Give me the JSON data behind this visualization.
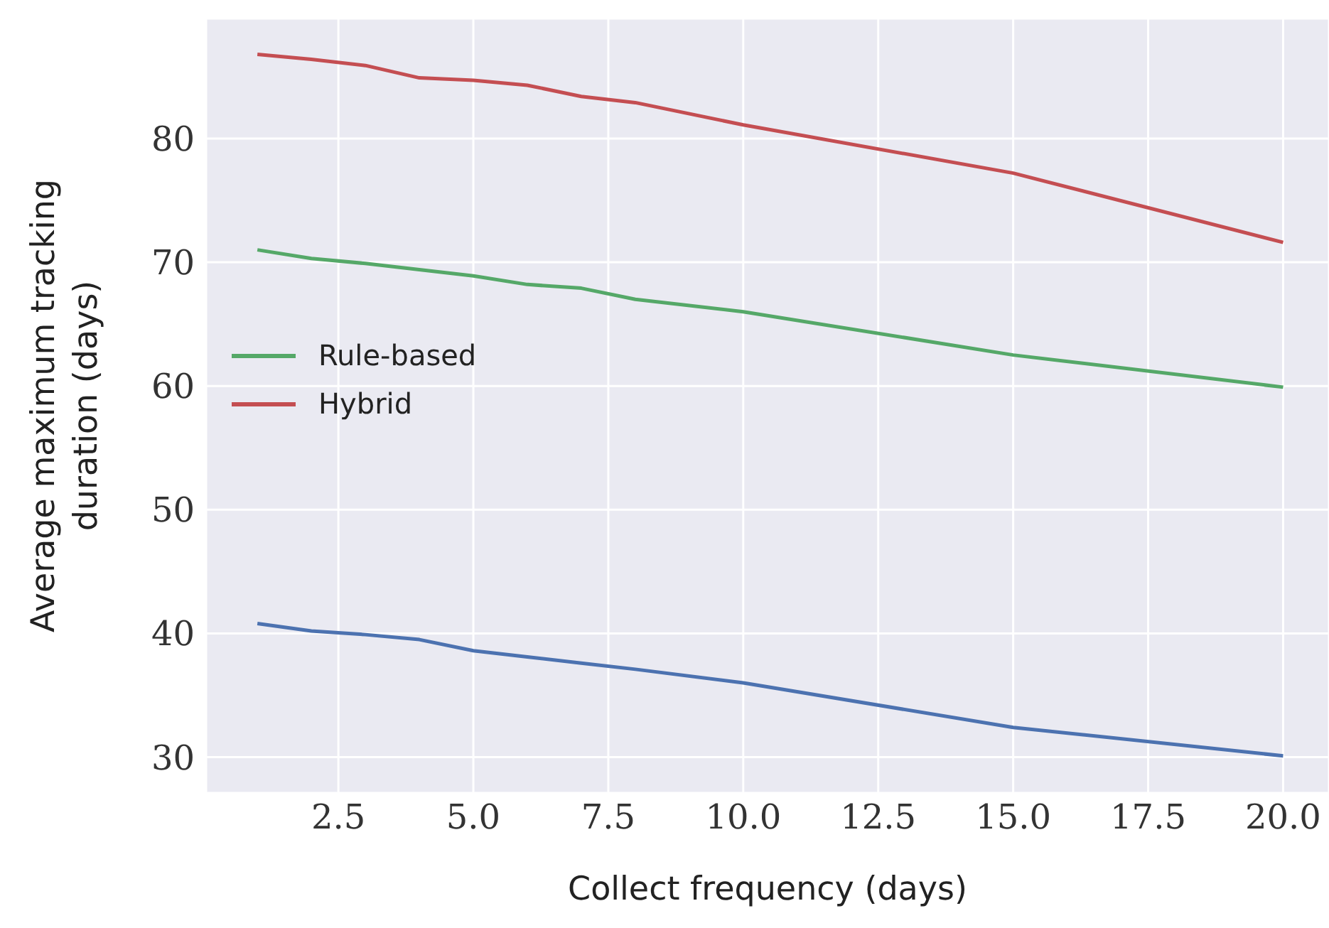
{
  "chart_data": {
    "type": "line",
    "xlabel": "Collect frequency (days)",
    "ylabel": "Average maximum tracking duration (days)",
    "x": [
      1,
      2,
      3,
      4,
      5,
      6,
      7,
      8,
      10,
      15,
      20
    ],
    "series": [
      {
        "color": "#4c72b0",
        "values": [
          40.8,
          40.2,
          39.9,
          39.5,
          38.6,
          38.1,
          37.6,
          37.1,
          36.0,
          32.4,
          30.1
        ]
      },
      {
        "name": "Rule-based",
        "color": "#55a868",
        "values": [
          71.0,
          70.3,
          69.9,
          69.4,
          68.9,
          68.2,
          67.9,
          67.0,
          66.0,
          62.5,
          59.9
        ]
      },
      {
        "name": "Hybrid",
        "color": "#c44e52",
        "values": [
          86.8,
          86.4,
          85.9,
          84.9,
          84.7,
          84.3,
          83.4,
          82.9,
          81.1,
          77.2,
          71.6
        ]
      }
    ],
    "xlim": [
      0.05,
      20.85
    ],
    "ylim": [
      27.1,
      89.7
    ],
    "xticks": [
      {
        "value": 2.5,
        "label": "2.5"
      },
      {
        "value": 5,
        "label": "5.0"
      },
      {
        "value": 7.5,
        "label": "7.5"
      },
      {
        "value": 10,
        "label": "10.0"
      },
      {
        "value": 12.5,
        "label": "12.5"
      },
      {
        "value": 15,
        "label": "15.0"
      },
      {
        "value": 17.5,
        "label": "17.5"
      },
      {
        "value": 20,
        "label": "20.0"
      }
    ],
    "yticks": [
      30,
      40,
      50,
      60,
      70,
      80
    ],
    "grid": true,
    "legend": "left",
    "marker": "none",
    "line_style": "solid"
  }
}
